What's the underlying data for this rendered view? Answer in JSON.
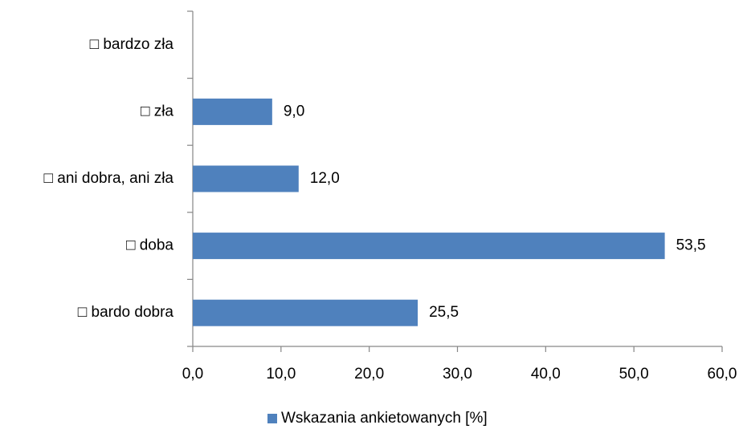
{
  "chart_data": {
    "type": "bar",
    "orientation": "horizontal",
    "categories": [
      "□ bardzo zła",
      "□ zła",
      "□ ani dobra, ani zła",
      "□ doba",
      "□ bardo dobra"
    ],
    "series": [
      {
        "name": "Wskazania ankietowanych [%]",
        "color": "#4f81bd",
        "values": [
          null,
          9.0,
          12.0,
          53.5,
          25.5
        ],
        "value_labels": [
          null,
          "9,0",
          "12,0",
          "53,5",
          "25,5"
        ]
      }
    ],
    "xlim": [
      0,
      60
    ],
    "xticks": [
      {
        "value": 0,
        "label": "0,0"
      },
      {
        "value": 10,
        "label": "10,0"
      },
      {
        "value": 20,
        "label": "20,0"
      },
      {
        "value": 30,
        "label": "30,0"
      },
      {
        "value": 40,
        "label": "40,0"
      },
      {
        "value": 50,
        "label": "50,0"
      },
      {
        "value": 60,
        "label": "60,0"
      }
    ],
    "legend": "bottom"
  }
}
